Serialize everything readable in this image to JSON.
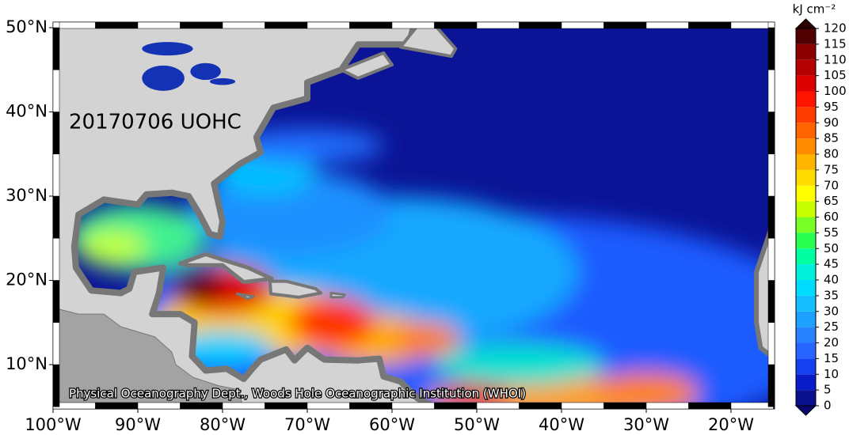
{
  "map": {
    "title": "20170706 UOHC",
    "credit": "Physical Oceanography Dept., Woods Hole Oceanographic Institution (WHOI)",
    "lat_labels": [
      {
        "value": 50,
        "label": "50°N"
      },
      {
        "value": 40,
        "label": "40°N"
      },
      {
        "value": 30,
        "label": "30°N"
      },
      {
        "value": 20,
        "label": "20°N"
      },
      {
        "value": 10,
        "label": "10°N"
      }
    ],
    "lon_labels": [
      {
        "value": -100,
        "label": "100°W"
      },
      {
        "value": -90,
        "label": "90°W"
      },
      {
        "value": -80,
        "label": "80°W"
      },
      {
        "value": -70,
        "label": "70°W"
      },
      {
        "value": -60,
        "label": "60°W"
      },
      {
        "value": -50,
        "label": "50°W"
      },
      {
        "value": -40,
        "label": "40°W"
      },
      {
        "value": -30,
        "label": "30°W"
      },
      {
        "value": -20,
        "label": "20°W"
      }
    ],
    "colorbar": {
      "unit": "kJ cm⁻²",
      "ticks": [
        0,
        5,
        10,
        15,
        20,
        25,
        30,
        35,
        40,
        45,
        50,
        55,
        60,
        65,
        70,
        75,
        80,
        85,
        90,
        95,
        100,
        105,
        110,
        115,
        120
      ],
      "colors": [
        "#0a0f8c",
        "#0a1cc8",
        "#1440f0",
        "#2864ff",
        "#2882ff",
        "#1ea0ff",
        "#14beff",
        "#00dcff",
        "#00f0dc",
        "#00ffa0",
        "#28ff50",
        "#78ff28",
        "#c8ff00",
        "#ffff00",
        "#ffdc00",
        "#ffb400",
        "#ff8c00",
        "#ff6400",
        "#ff3c00",
        "#ff1400",
        "#dc0000",
        "#b40000",
        "#8c0000",
        "#500000"
      ],
      "under_color": "#08086e",
      "over_color": "#2a0000"
    }
  }
}
